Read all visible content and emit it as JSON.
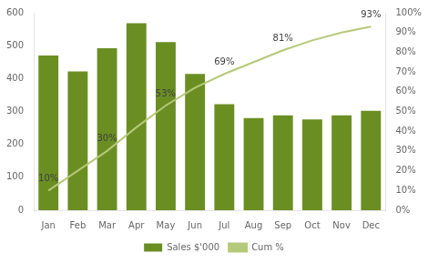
{
  "chart_data": {
    "type": "bar",
    "categories": [
      "Jan",
      "Feb",
      "Mar",
      "Apr",
      "May",
      "Jun",
      "Jul",
      "Aug",
      "Sep",
      "Oct",
      "Nov",
      "Dec"
    ],
    "series": [
      {
        "name": "Sales $'000",
        "type": "bar",
        "color": "#6b8e23",
        "values": [
          470,
          422,
          492,
          568,
          511,
          414,
          322,
          280,
          288,
          276,
          288,
          302
        ]
      },
      {
        "name": "Cum %",
        "type": "line",
        "axis": "y2",
        "color": "#b5c97a",
        "values": [
          0.1,
          0.2,
          0.3,
          0.42,
          0.53,
          0.62,
          0.69,
          0.75,
          0.81,
          0.86,
          0.9,
          0.93
        ],
        "value_labels": [
          "10%",
          null,
          "30%",
          null,
          "53%",
          null,
          "69%",
          null,
          "81%",
          null,
          null,
          "93%"
        ],
        "data_labels": true
      }
    ],
    "ylim": [
      0,
      600
    ],
    "yticks": [
      0,
      100,
      200,
      300,
      400,
      500,
      600
    ],
    "y2lim": [
      0.0,
      1.0
    ],
    "y2ticks": [
      {
        "value": 0.0,
        "label": "0%"
      },
      {
        "value": 0.1,
        "label": "10%"
      },
      {
        "value": 0.2,
        "label": "20%"
      },
      {
        "value": 0.3,
        "label": "30%"
      },
      {
        "value": 0.4,
        "label": "40%"
      },
      {
        "value": 0.5,
        "label": "50%"
      },
      {
        "value": 0.6,
        "label": "60%"
      },
      {
        "value": 0.7,
        "label": "70%"
      },
      {
        "value": 0.8,
        "label": "80%"
      },
      {
        "value": 0.9,
        "label": "90%"
      },
      {
        "value": 1.0,
        "label": "100%"
      }
    ],
    "grid": false,
    "legend": "bottom"
  }
}
